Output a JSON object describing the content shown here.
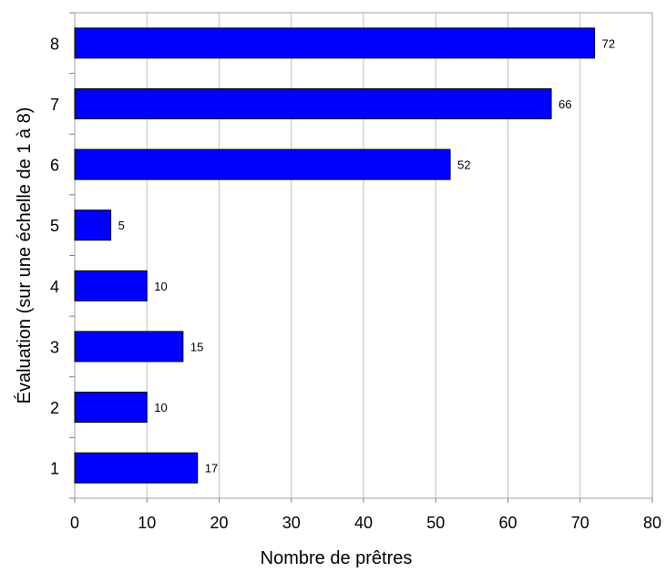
{
  "chart_data": {
    "type": "bar",
    "orientation": "horizontal",
    "title": "",
    "xlabel": "Nombre de prêtres",
    "ylabel": "Évaluation (sur une échelle de 1 à 8)",
    "categories": [
      "1",
      "2",
      "3",
      "4",
      "5",
      "6",
      "7",
      "8"
    ],
    "values": [
      17,
      10,
      15,
      10,
      5,
      52,
      66,
      72
    ],
    "data_labels": [
      "17",
      "10",
      "15",
      "10",
      "5",
      "52",
      "66",
      "72"
    ],
    "xlim": [
      0,
      80
    ],
    "x_ticks": [
      "0",
      "10",
      "20",
      "30",
      "40",
      "50",
      "60",
      "70",
      "80"
    ],
    "grid": "vertical",
    "legend": "none",
    "colors": {
      "bar_fill": "#0000FF",
      "bar_stroke": "#000000",
      "grid": "#C0C0C0",
      "plot_border": "#A0A0A0"
    }
  }
}
